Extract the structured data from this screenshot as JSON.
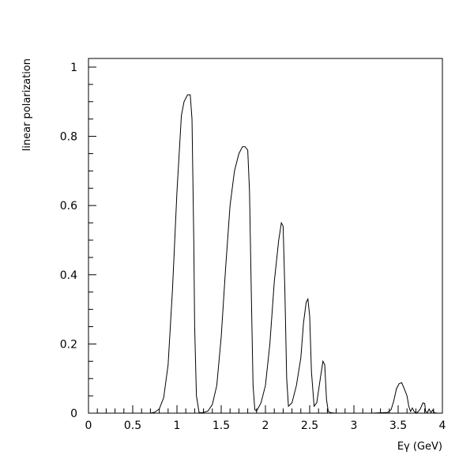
{
  "chart_data": {
    "type": "line",
    "title": "",
    "xlabel": "Eγ (GeV)",
    "ylabel": "linear polarization",
    "xlim": [
      0,
      4
    ],
    "ylim": [
      0,
      1.025
    ],
    "grid": false,
    "legend": "none",
    "x_ticks": [
      0,
      0.5,
      1,
      1.5,
      2,
      2.5,
      3,
      3.5,
      4
    ],
    "x_tick_labels": [
      "0",
      "0.5",
      "1",
      "1.5",
      "2",
      "2.5",
      "3",
      "3.5",
      "4"
    ],
    "y_ticks": [
      0,
      0.2,
      0.4,
      0.6,
      0.8,
      1
    ],
    "y_tick_labels": [
      "0",
      "0.2",
      "0.4",
      "0.6",
      "0.8",
      "1"
    ],
    "series": [
      {
        "color": "#000000",
        "x": [
          0,
          0.7,
          0.75,
          0.8,
          0.85,
          0.9,
          0.95,
          1.0,
          1.05,
          1.08,
          1.12,
          1.15,
          1.17,
          1.19,
          1.2,
          1.22,
          1.25,
          1.28,
          1.35,
          1.4,
          1.45,
          1.5,
          1.55,
          1.6,
          1.65,
          1.7,
          1.74,
          1.77,
          1.8,
          1.82,
          1.84,
          1.86,
          1.88,
          1.9,
          1.95,
          2.0,
          2.05,
          2.1,
          2.15,
          2.18,
          2.2,
          2.22,
          2.24,
          2.26,
          2.3,
          2.35,
          2.4,
          2.43,
          2.46,
          2.48,
          2.5,
          2.52,
          2.55,
          2.58,
          2.62,
          2.65,
          2.67,
          2.69,
          2.71,
          2.74,
          2.8,
          3.0,
          3.2,
          3.38,
          3.42,
          3.45,
          3.48,
          3.51,
          3.54,
          3.57,
          3.6,
          3.62,
          3.64,
          3.66,
          3.68,
          3.7,
          3.72,
          3.75,
          3.78,
          3.8,
          3.81,
          3.83,
          3.85,
          3.87,
          3.89,
          3.91,
          3.95,
          4.0
        ],
        "y": [
          0,
          0,
          0.003,
          0.012,
          0.045,
          0.14,
          0.36,
          0.64,
          0.86,
          0.9,
          0.92,
          0.92,
          0.85,
          0.5,
          0.25,
          0.05,
          0.002,
          0.001,
          0.006,
          0.025,
          0.08,
          0.22,
          0.42,
          0.6,
          0.7,
          0.75,
          0.77,
          0.77,
          0.76,
          0.64,
          0.35,
          0.08,
          0.01,
          0.006,
          0.03,
          0.08,
          0.2,
          0.38,
          0.5,
          0.55,
          0.54,
          0.35,
          0.1,
          0.02,
          0.03,
          0.08,
          0.16,
          0.26,
          0.32,
          0.33,
          0.28,
          0.12,
          0.02,
          0.03,
          0.1,
          0.15,
          0.14,
          0.04,
          0.005,
          0.001,
          0,
          0,
          0,
          0.002,
          0.01,
          0.035,
          0.07,
          0.085,
          0.088,
          0.07,
          0.05,
          0.02,
          0.005,
          0.015,
          0.005,
          0.001,
          0.003,
          0.012,
          0.03,
          0.028,
          0.005,
          0.002,
          0.012,
          0.002,
          0.009,
          0.001,
          0,
          0
        ]
      }
    ]
  }
}
